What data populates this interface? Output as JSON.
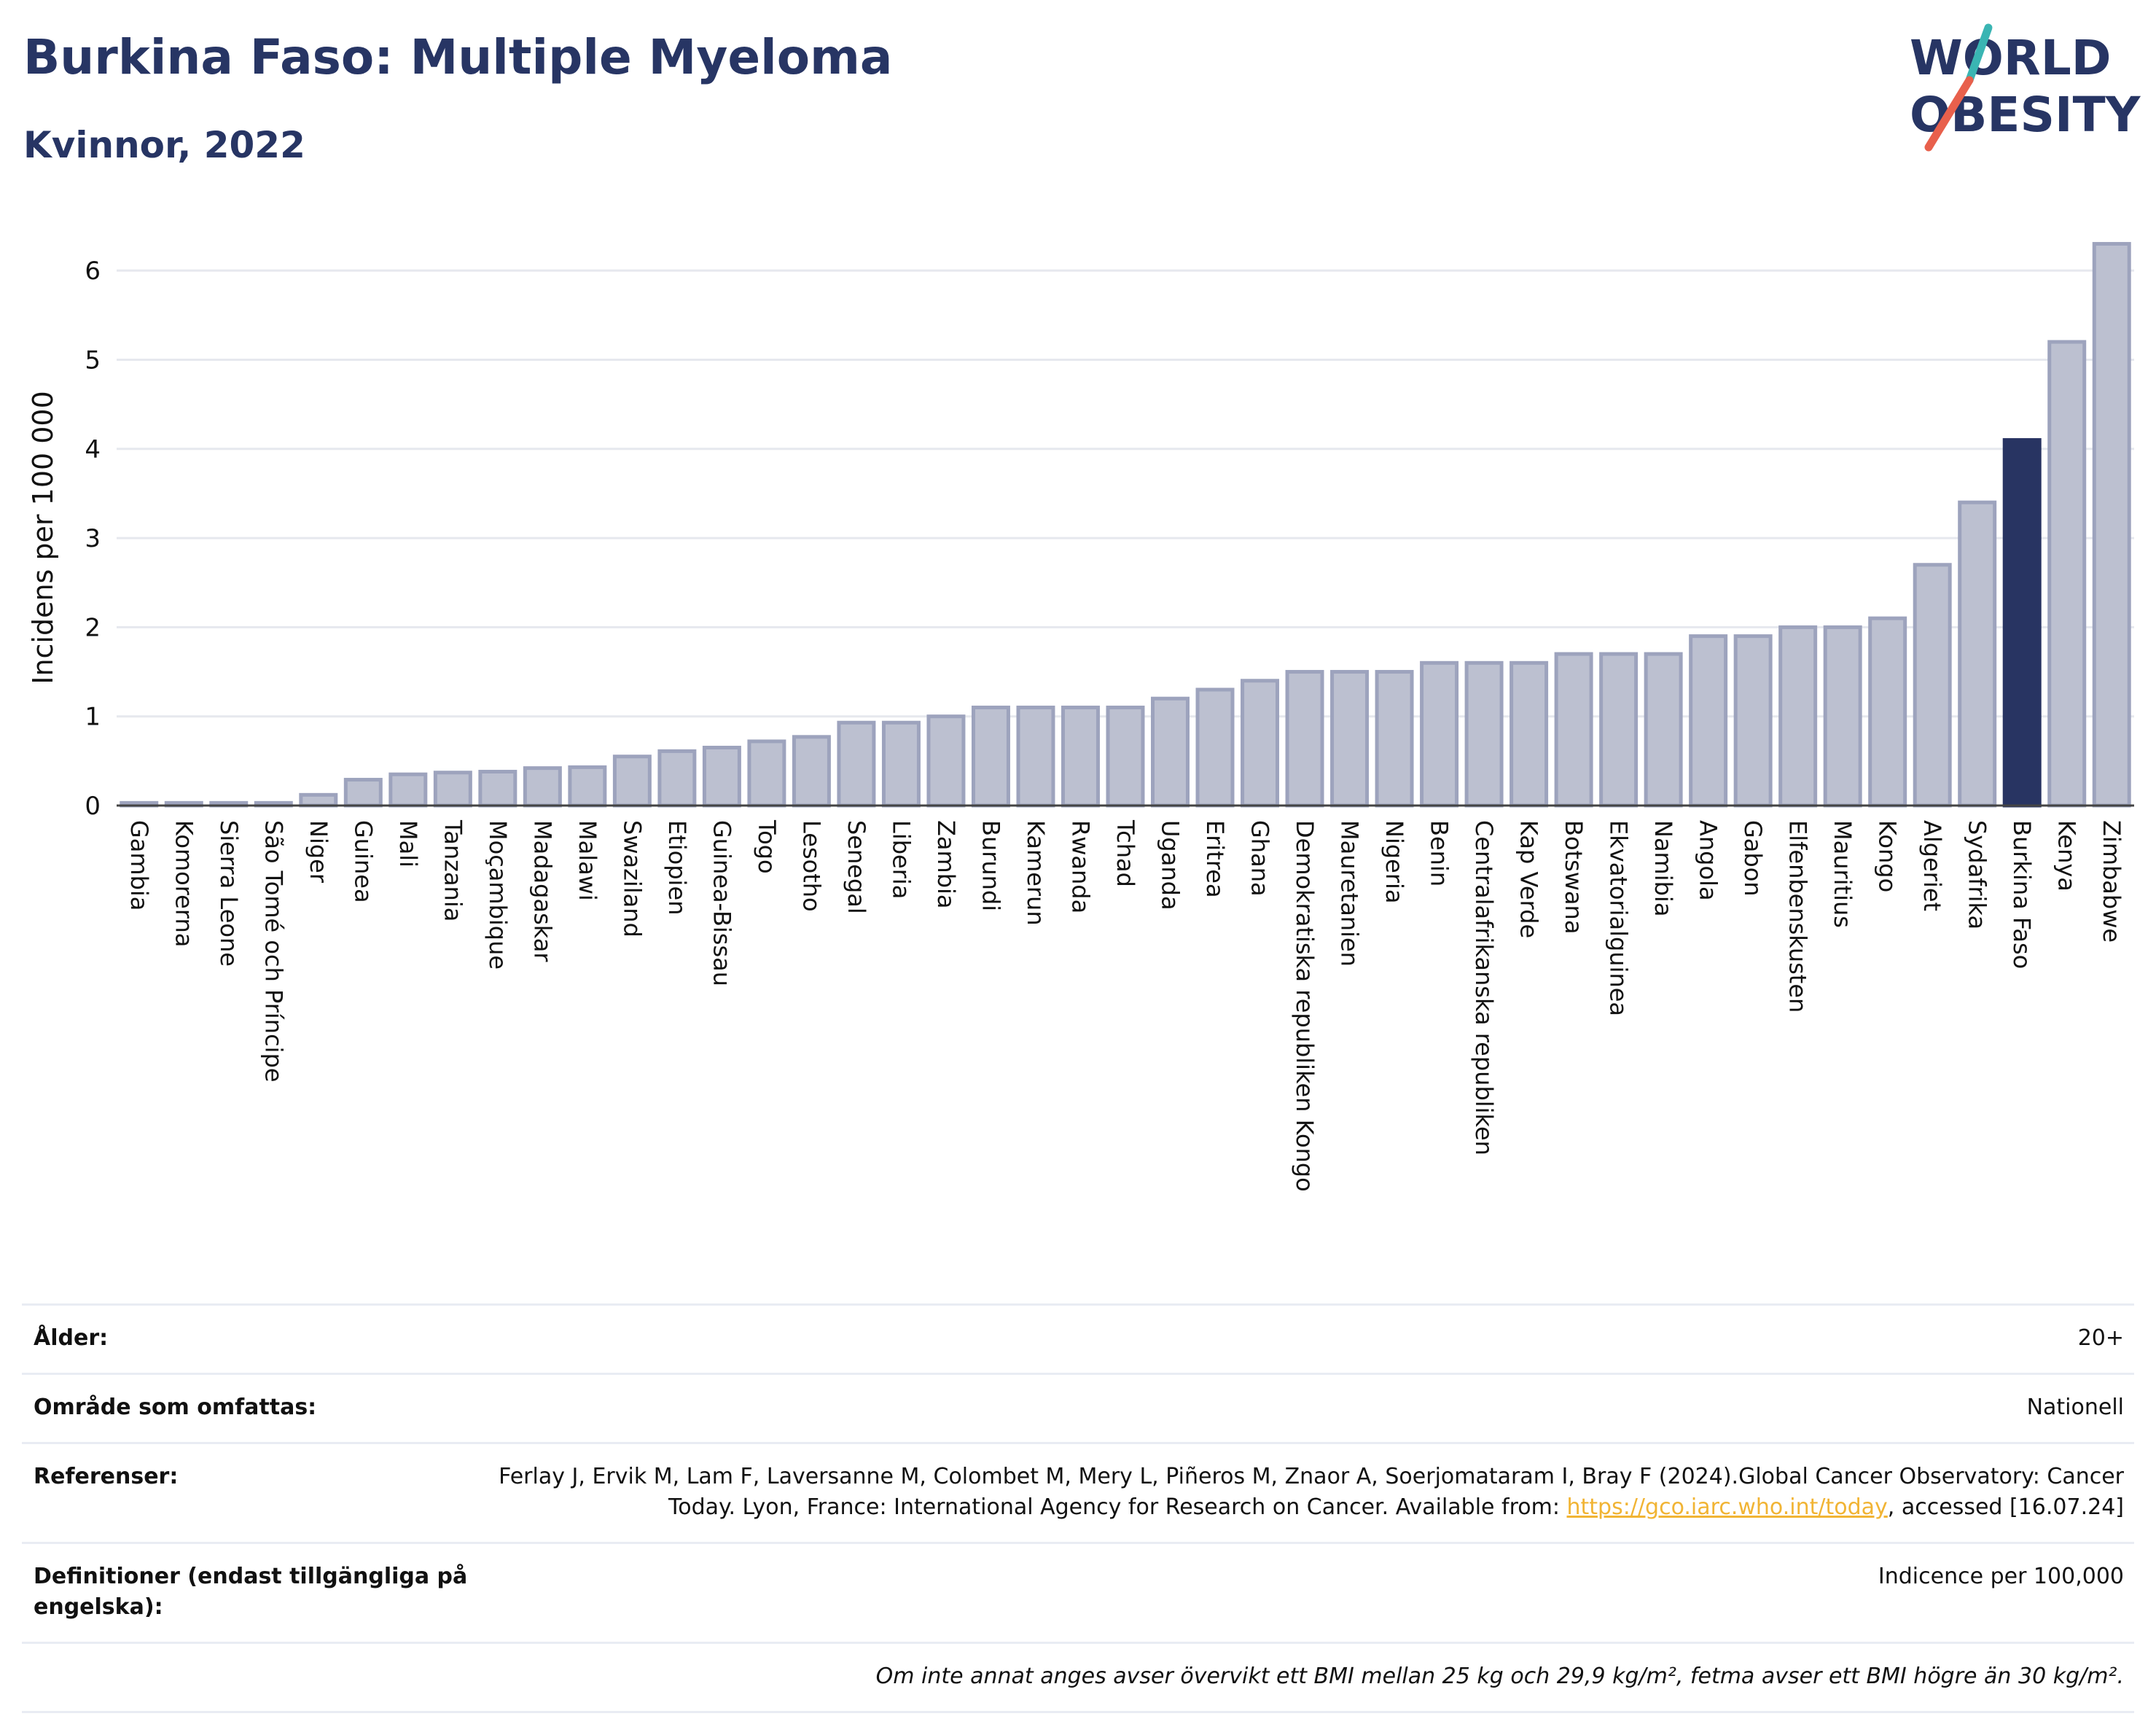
{
  "header": {
    "title": "Burkina Faso: Multiple Myeloma",
    "subtitle": "Kvinnor, 2022",
    "logo_line1": "WORLD",
    "logo_line2": "OBESITY"
  },
  "colors": {
    "bar": "#bcc0d0",
    "bar_edge": "#9da3bd",
    "highlight": "#283462",
    "title": "#273564",
    "grid": "#e6e8ee",
    "logo_teal": "#3ab5b3",
    "logo_red": "#e8604c"
  },
  "chart_data": {
    "type": "bar",
    "ylabel": "Incidens per 100 000",
    "ylim": [
      0,
      6.5
    ],
    "yticks": [
      0,
      1,
      2,
      3,
      4,
      5,
      6
    ],
    "highlight": "Burkina Faso",
    "grid": true,
    "categories": [
      "Gambia",
      "Komorerna",
      "Sierra Leone",
      "São Tomé och Príncipe",
      "Niger",
      "Guinea",
      "Mali",
      "Tanzania",
      "Moçambique",
      "Madagaskar",
      "Malawi",
      "Swaziland",
      "Etiopien",
      "Guinea-Bissau",
      "Togo",
      "Lesotho",
      "Senegal",
      "Liberia",
      "Zambia",
      "Burundi",
      "Kamerun",
      "Rwanda",
      "Tchad",
      "Uganda",
      "Eritrea",
      "Ghana",
      "Demokratiska republiken Kongo",
      "Mauretanien",
      "Nigeria",
      "Benin",
      "Centralafrikanska republiken",
      "Kap Verde",
      "Botswana",
      "Ekvatorialguinea",
      "Namibia",
      "Angola",
      "Gabon",
      "Elfenbenskusten",
      "Mauritius",
      "Kongo",
      "Algeriet",
      "Sydafrika",
      "Burkina Faso",
      "Kenya",
      "Zimbabwe"
    ],
    "values": [
      0.03,
      0.03,
      0.03,
      0.03,
      0.12,
      0.29,
      0.35,
      0.37,
      0.38,
      0.42,
      0.43,
      0.55,
      0.61,
      0.65,
      0.72,
      0.77,
      0.93,
      0.93,
      1.0,
      1.1,
      1.1,
      1.1,
      1.1,
      1.2,
      1.3,
      1.4,
      1.5,
      1.5,
      1.5,
      1.6,
      1.6,
      1.6,
      1.7,
      1.7,
      1.7,
      1.9,
      1.9,
      2.0,
      2.0,
      2.1,
      2.7,
      3.4,
      4.1,
      5.2,
      6.3
    ]
  },
  "info": {
    "age_label": "Ålder:",
    "age_value": "20+",
    "area_label": "Område som omfattas:",
    "area_value": "Nationell",
    "refs_label": "Referenser:",
    "refs_text_1": "Ferlay J, Ervik M, Lam F, Laversanne M, Colombet M, Mery L, Piñeros M, Znaor A, Soerjomataram I, Bray F (2024).Global Cancer Observatory: Cancer Today. Lyon, France: International Agency for Research on Cancer. Available from: ",
    "refs_link": "https://gco.iarc.who.int/today",
    "refs_text_2": ", accessed [16.07.24]",
    "defs_label": "Definitioner (endast tillgängliga på engelska):",
    "defs_value": "Indicence per 100,000",
    "note": "Om inte annat anges avser övervikt ett BMI mellan 25 kg och 29,9 kg/m², fetma avser ett BMI högre än 30 kg/m²."
  }
}
